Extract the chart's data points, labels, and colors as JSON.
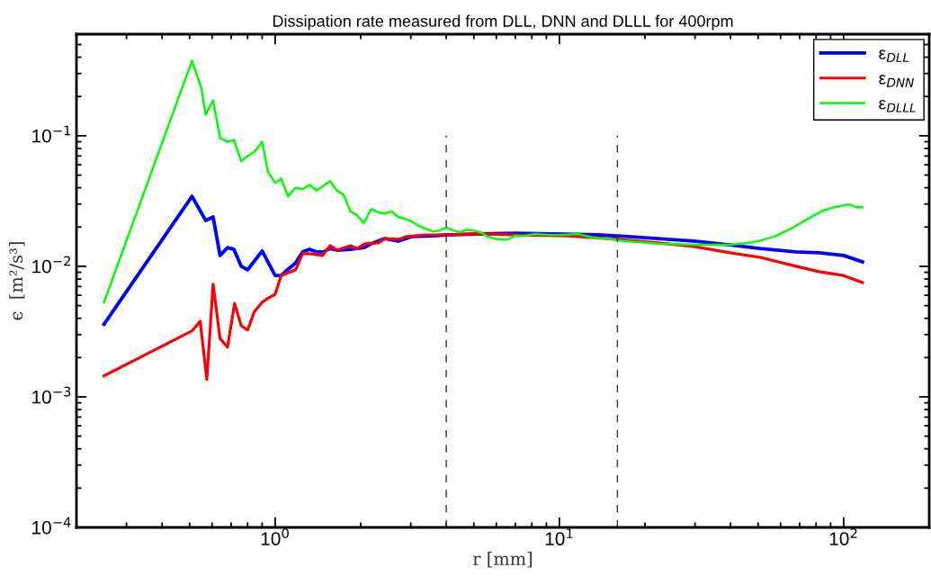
{
  "chart_data": {
    "type": "line",
    "title": "Dissipation rate measured from DLL, DNN and DLLL for 400rpm",
    "xlabel": "r [mm]",
    "ylabel": "ϵ  [m²/s³]",
    "log": "xy",
    "xlim": [
      0.2,
      200
    ],
    "ylim": [
      0.0001,
      0.6
    ],
    "xticks": [
      {
        "value": 1,
        "label": "10$^{0}$"
      },
      {
        "value": 10,
        "label": "10$^{1}$"
      },
      {
        "value": 100,
        "label": "10$^{2}$"
      }
    ],
    "yticks": [
      {
        "value": 0.0001,
        "label": "10$^{−4}$"
      },
      {
        "value": 0.001,
        "label": "10$^{−3}$"
      },
      {
        "value": 0.01,
        "label": "10$^{−2}$"
      },
      {
        "value": 0.1,
        "label": "10$^{−1}$"
      }
    ],
    "grid": false,
    "legend": "top right",
    "line_style": "solid",
    "marker": "none",
    "series": [
      {
        "name": "ε$_{DLL}$",
        "color": "#0000ff",
        "x": [
          0.25,
          0.51,
          0.57,
          0.605,
          0.64,
          0.68,
          0.716,
          0.76,
          0.8,
          0.9,
          1.0,
          1.05,
          1.11,
          1.18,
          1.25,
          1.32,
          1.4,
          1.48,
          1.56,
          1.65,
          1.84,
          2.05,
          2.18,
          2.43,
          2.71,
          3.02,
          3.6,
          4.0,
          5.2,
          6.95,
          9.6,
          13.7,
          17.5,
          22.2,
          29.7,
          39.8,
          50.9,
          68,
          82,
          100,
          116.5
        ],
        "values": [
          0.0036,
          0.0344,
          0.0224,
          0.0239,
          0.0121,
          0.0139,
          0.0135,
          0.01,
          0.0094,
          0.0131,
          0.0085,
          0.0085,
          0.0095,
          0.0106,
          0.0129,
          0.0135,
          0.0129,
          0.0129,
          0.0137,
          0.0133,
          0.0135,
          0.0139,
          0.0149,
          0.0163,
          0.0156,
          0.0169,
          0.0171,
          0.0174,
          0.0177,
          0.0179,
          0.0177,
          0.0174,
          0.0169,
          0.0163,
          0.0156,
          0.0146,
          0.0137,
          0.0129,
          0.0127,
          0.0121,
          0.0108
        ]
      },
      {
        "name": "ε$_{DNN}$",
        "color": "#ff0000",
        "x": [
          0.25,
          0.51,
          0.545,
          0.575,
          0.605,
          0.64,
          0.68,
          0.72,
          0.76,
          0.8,
          0.845,
          0.9,
          0.944,
          1.0,
          1.05,
          1.18,
          1.25,
          1.32,
          1.47,
          1.56,
          1.65,
          1.84,
          1.94,
          2.07,
          2.31,
          2.43,
          2.71,
          2.9,
          3.37,
          4.0,
          5.2,
          6.95,
          10.8,
          16,
          22.2,
          29.7,
          39.8,
          50.9,
          68,
          82,
          100,
          116.5
        ],
        "values": [
          0.00145,
          0.0032,
          0.0038,
          0.00136,
          0.0073,
          0.0028,
          0.0024,
          0.0052,
          0.0035,
          0.00325,
          0.0045,
          0.0053,
          0.0057,
          0.0061,
          0.0085,
          0.0094,
          0.0125,
          0.0125,
          0.0121,
          0.0144,
          0.0133,
          0.0144,
          0.0137,
          0.0149,
          0.0151,
          0.0163,
          0.0161,
          0.0169,
          0.0174,
          0.0174,
          0.0177,
          0.0174,
          0.0171,
          0.0161,
          0.0151,
          0.0142,
          0.0127,
          0.0117,
          0.01,
          0.0091,
          0.0085,
          0.0075
        ]
      },
      {
        "name": "ε$_{DLLL}$",
        "color": "#00ff00",
        "x": [
          0.25,
          0.51,
          0.55,
          0.57,
          0.605,
          0.64,
          0.68,
          0.716,
          0.76,
          0.8,
          0.845,
          0.9,
          0.944,
          1.0,
          1.05,
          1.11,
          1.18,
          1.25,
          1.32,
          1.4,
          1.47,
          1.56,
          1.65,
          1.74,
          1.84,
          1.94,
          2.05,
          2.18,
          2.31,
          2.43,
          2.57,
          2.71,
          2.87,
          3.02,
          3.2,
          3.37,
          3.59,
          3.78,
          4.0,
          4.25,
          4.47,
          4.73,
          5.0,
          5.28,
          5.6,
          5.9,
          6.24,
          6.6,
          6.95,
          7.5,
          8.2,
          9.1,
          10.3,
          11.6,
          13.1,
          14.8,
          16,
          17.5,
          22.2,
          29.7,
          39.8,
          48.4,
          57.2,
          67,
          74.8,
          84.6,
          93,
          104.5,
          110.7,
          116.5
        ],
        "values": [
          0.0053,
          0.375,
          0.233,
          0.145,
          0.187,
          0.096,
          0.09,
          0.093,
          0.064,
          0.07,
          0.075,
          0.09,
          0.053,
          0.0436,
          0.047,
          0.0344,
          0.04,
          0.039,
          0.042,
          0.038,
          0.041,
          0.045,
          0.038,
          0.0355,
          0.0263,
          0.0247,
          0.0214,
          0.0275,
          0.0258,
          0.0254,
          0.0263,
          0.0239,
          0.0231,
          0.0221,
          0.0204,
          0.0195,
          0.0185,
          0.0188,
          0.0198,
          0.0188,
          0.0182,
          0.0191,
          0.0188,
          0.0182,
          0.0169,
          0.0163,
          0.0161,
          0.0161,
          0.0171,
          0.0171,
          0.0177,
          0.0174,
          0.0174,
          0.0177,
          0.0166,
          0.0163,
          0.0158,
          0.0156,
          0.0149,
          0.0146,
          0.0146,
          0.0153,
          0.0169,
          0.02,
          0.0231,
          0.0267,
          0.0284,
          0.0298,
          0.0284,
          0.0284
        ]
      },
      {
        "color": "#333333",
        "line_style": "dashed",
        "x": [
          4,
          4
        ],
        "values": [
          0.0001,
          0.1
        ]
      },
      {
        "color": "#333333",
        "line_style": "dashed",
        "x": [
          16,
          16
        ],
        "values": [
          0.0001,
          0.1
        ]
      }
    ]
  }
}
